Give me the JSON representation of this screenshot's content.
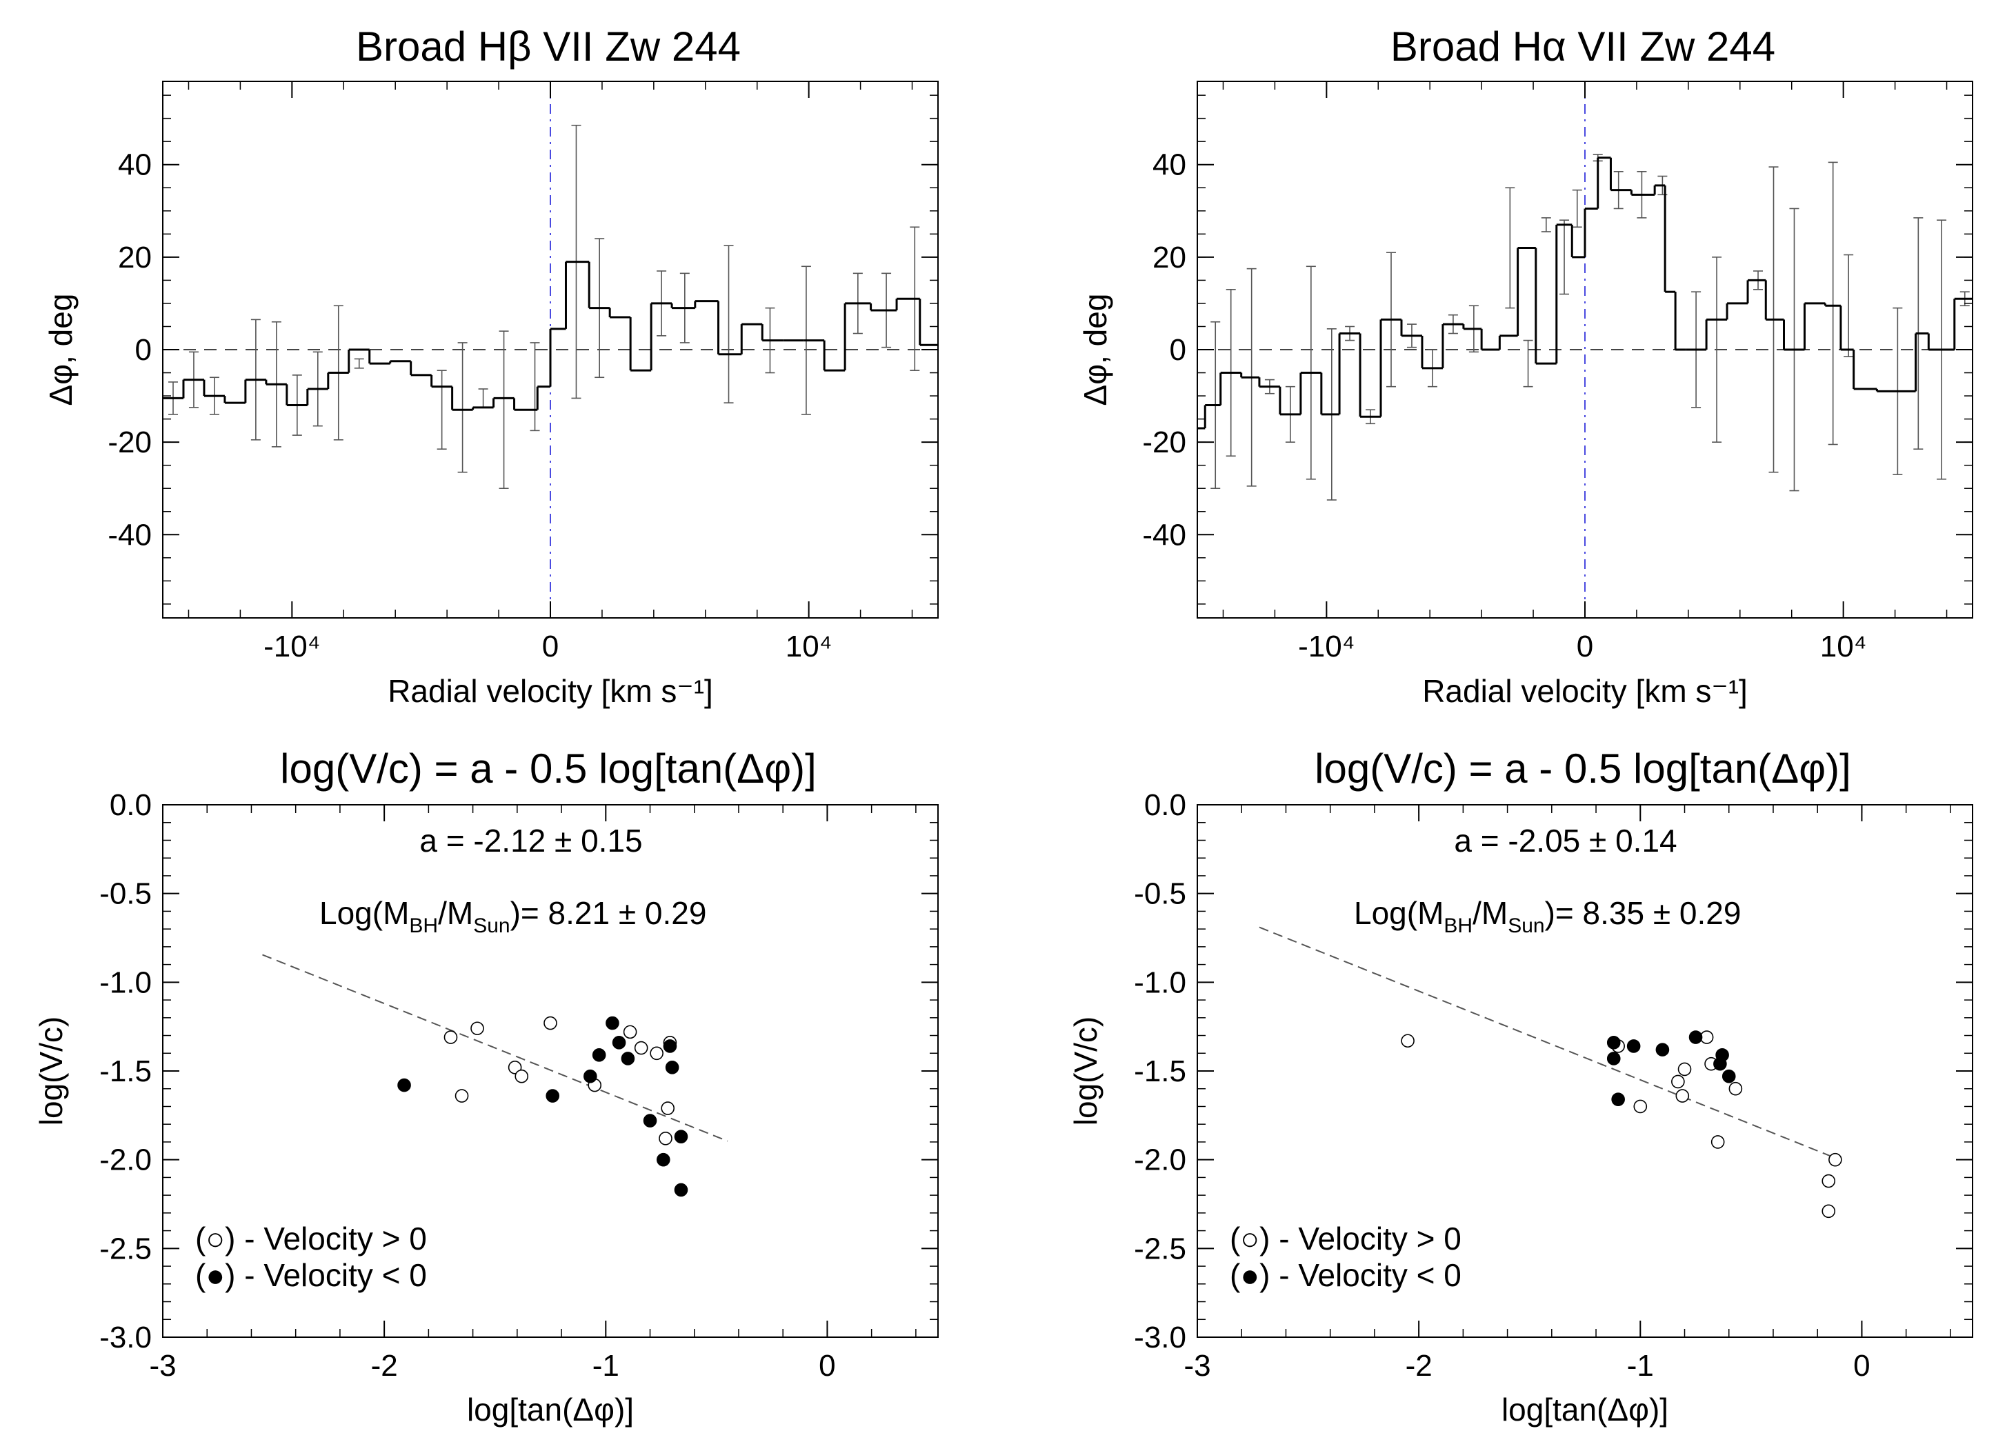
{
  "chart_data": [
    {
      "type": "line",
      "style": "step",
      "title": "Broad Hβ   VII Zw 244",
      "xlabel": "Radial velocity [km s⁻¹]",
      "ylabel": "Δφ, deg",
      "xlim": [
        -15000,
        15000
      ],
      "ylim": [
        -58,
        58
      ],
      "xticks": [
        -10000,
        0,
        10000
      ],
      "xtick_labels": [
        "-10⁴",
        "0",
        "10⁴"
      ],
      "yticks": [
        -40,
        -20,
        0,
        20,
        40
      ],
      "ytick_labels": [
        "-40",
        "-20",
        "0",
        "20",
        "40"
      ],
      "zero_line": "dashed horizontal at Δφ = 0",
      "reference_line": "dash-dot vertical at velocity = 0",
      "bin_edges": [
        -15000,
        -14200,
        -13400,
        -12600,
        -11800,
        -11000,
        -10200,
        -9400,
        -8600,
        -7800,
        -7000,
        -6200,
        -5400,
        -4600,
        -3800,
        -3000,
        -2200,
        -1400,
        -500,
        0,
        600,
        1500,
        2300,
        3100,
        3900,
        4700,
        5600,
        6500,
        7400,
        8200,
        9000,
        9800,
        10600,
        11400,
        12400,
        13400,
        14300,
        15000
      ],
      "values": [
        -10.5,
        -6.5,
        -10,
        -11.5,
        -6.5,
        -7.5,
        -12,
        -8.5,
        -5,
        0,
        -3,
        -2.5,
        -5.5,
        -8,
        -13,
        -12.5,
        -10.5,
        -13,
        -8,
        4.5,
        19,
        9,
        7,
        -4.5,
        10,
        9,
        10.5,
        -1,
        5.5,
        2,
        2,
        2,
        -4.5,
        10,
        8.5,
        11,
        1
      ],
      "error_centers": [
        -14600,
        -13800,
        -13000,
        -11400,
        -10600,
        -9800,
        -9000,
        -8200,
        -7400,
        -4200,
        -3400,
        -2600,
        -1800,
        -600,
        1000,
        1900,
        4300,
        5200,
        6900,
        8500,
        9900,
        11900,
        13000,
        14100
      ],
      "error_values": [
        -10.5,
        -6.5,
        -10,
        -6.5,
        -7.5,
        -12,
        -8.5,
        -5,
        -3,
        -13,
        -12.5,
        -10.5,
        -13,
        -8,
        19,
        9,
        10,
        9,
        5.5,
        2,
        2,
        10,
        8.5,
        11
      ],
      "error_sizes": [
        3.5,
        6,
        4,
        13,
        13.5,
        6.5,
        8,
        14.5,
        1,
        8.5,
        14,
        2,
        17,
        9.5,
        29.5,
        15,
        7,
        7.5,
        17,
        7,
        16,
        6.5,
        8,
        15.5
      ]
    },
    {
      "type": "line",
      "style": "step",
      "title": "Broad Hα   VII Zw 244",
      "xlabel": "Radial velocity [km s⁻¹]",
      "ylabel": "Δφ, deg",
      "xlim": [
        -15000,
        15000
      ],
      "ylim": [
        -58,
        58
      ],
      "xticks": [
        -10000,
        0,
        10000
      ],
      "xtick_labels": [
        "-10⁴",
        "0",
        "10⁴"
      ],
      "yticks": [
        -40,
        -20,
        0,
        20,
        40
      ],
      "ytick_labels": [
        "-40",
        "-20",
        "0",
        "20",
        "40"
      ],
      "zero_line": "dashed horizontal at Δφ = 0",
      "reference_line": "dash-dot vertical at velocity = 0",
      "bin_edges": [
        -15000,
        -14700,
        -14100,
        -13300,
        -12600,
        -11800,
        -11000,
        -10200,
        -9500,
        -8700,
        -7900,
        -7100,
        -6300,
        -5500,
        -4700,
        -4000,
        -3300,
        -2600,
        -1900,
        -1100,
        -500,
        0,
        500,
        1000,
        1800,
        2700,
        3100,
        3500,
        3900,
        4700,
        5500,
        6300,
        7000,
        7700,
        8500,
        9300,
        9900,
        10400,
        11300,
        12800,
        13300,
        14300,
        15000
      ],
      "values": [
        -17,
        -12,
        -5,
        -6,
        -8,
        -14,
        -5,
        -14,
        3.5,
        -14.5,
        6.5,
        3,
        -4,
        5.5,
        4.5,
        0,
        3,
        22,
        -3,
        27,
        20,
        30.5,
        41.5,
        34.5,
        33.5,
        35.5,
        12.5,
        0,
        0,
        6.5,
        10,
        15,
        6.5,
        0,
        10,
        9.5,
        0,
        -8.5,
        -9,
        3.5,
        0,
        11
      ],
      "error_centers": [
        -14300,
        -13700,
        -12900,
        -12200,
        -11400,
        -10600,
        -9800,
        -9100,
        -8300,
        -7500,
        -6700,
        -5900,
        -5100,
        -4300,
        -2900,
        -2200,
        -1500,
        -800,
        -300,
        500,
        1300,
        2200,
        3000,
        4300,
        5100,
        6700,
        7300,
        8100,
        9600,
        10200,
        12100,
        12900,
        13800,
        14700
      ],
      "error_values": [
        -12,
        -5,
        -6,
        -8,
        -14,
        -5,
        -14,
        3.5,
        -14.5,
        6.5,
        3,
        -4,
        5.5,
        4.5,
        22,
        -3,
        27,
        20,
        30.5,
        41.5,
        34.5,
        33.5,
        35.5,
        0,
        0,
        15,
        6.5,
        0,
        10,
        9.5,
        -9,
        3.5,
        0,
        11
      ],
      "error_sizes": [
        18,
        18,
        23.5,
        1.5,
        6,
        23,
        18.5,
        1.5,
        1.5,
        14.5,
        2.5,
        4,
        2,
        5,
        13,
        5,
        1.5,
        8,
        4,
        0.7,
        4,
        5,
        2,
        12.5,
        20,
        2,
        33,
        30.5,
        30.5,
        11,
        18,
        25,
        28,
        1.5
      ]
    },
    {
      "type": "scatter",
      "title": "log(V/c) = a - 0.5 log[tan(Δφ)]",
      "xlabel": "log[tan(Δφ)]",
      "ylabel": "log(V/c)",
      "xlim": [
        -3,
        0.5
      ],
      "ylim": [
        -3,
        0
      ],
      "xticks": [
        -3,
        -2,
        -1,
        0
      ],
      "xtick_labels": [
        "-3",
        "-2",
        "-1",
        "0"
      ],
      "yticks": [
        0,
        -0.5,
        -1,
        -1.5,
        -2,
        -2.5,
        -3
      ],
      "ytick_labels": [
        "0.0",
        "-0.5",
        "-1.0",
        "-1.5",
        "-2.0",
        "-2.5",
        "-3.0"
      ],
      "fit_line": {
        "a": -2.12,
        "x_range": [
          -2.55,
          -0.45
        ]
      },
      "annotation_a": {
        "prefix": "a = ",
        "value": "-2.12",
        "pm": "±",
        "error": "0.15"
      },
      "annotation_mass": {
        "prefix": "Log(M",
        "sub_bh": "BH",
        "slash": "/M",
        "sub_sun": "Sun",
        "suffix": ")= ",
        "value": "8.21",
        "pm": "±",
        "error": "0.29"
      },
      "legend": {
        "open_label": "- Velocity > 0",
        "filled_label": "- Velocity < 0",
        "open_marker": "○",
        "filled_marker": "●",
        "placement": "bottom-left"
      },
      "series": [
        {
          "name": "Velocity > 0",
          "marker": "open",
          "x": [
            -1.7,
            -1.65,
            -1.58,
            -1.41,
            -1.38,
            -1.25,
            -1.05,
            -0.89,
            -0.84,
            -0.77,
            -0.73,
            -0.72,
            -0.71
          ],
          "y": [
            -1.31,
            -1.64,
            -1.26,
            -1.48,
            -1.53,
            -1.23,
            -1.58,
            -1.28,
            -1.37,
            -1.4,
            -1.88,
            -1.71,
            -1.34
          ]
        },
        {
          "name": "Velocity < 0",
          "marker": "filled",
          "x": [
            -1.91,
            -1.24,
            -1.07,
            -1.03,
            -0.97,
            -0.94,
            -0.9,
            -0.8,
            -0.74,
            -0.71,
            -0.7,
            -0.66,
            -0.66
          ],
          "y": [
            -1.58,
            -1.64,
            -1.53,
            -1.41,
            -1.23,
            -1.34,
            -1.43,
            -1.78,
            -2.0,
            -1.36,
            -1.48,
            -1.87,
            -2.17
          ]
        }
      ]
    },
    {
      "type": "scatter",
      "title": "log(V/c) = a - 0.5 log[tan(Δφ)]",
      "xlabel": "log[tan(Δφ)]",
      "ylabel": "log(V/c)",
      "xlim": [
        -3,
        0.5
      ],
      "ylim": [
        -3,
        0
      ],
      "xticks": [
        -3,
        -2,
        -1,
        0
      ],
      "xtick_labels": [
        "-3",
        "-2",
        "-1",
        "0"
      ],
      "yticks": [
        0,
        -0.5,
        -1,
        -1.5,
        -2,
        -2.5,
        -3
      ],
      "ytick_labels": [
        "0.0",
        "-0.5",
        "-1.0",
        "-1.5",
        "-2.0",
        "-2.5",
        "-3.0"
      ],
      "fit_line": {
        "a": -2.05,
        "x_range": [
          -2.72,
          -0.12
        ]
      },
      "annotation_a": {
        "prefix": "a = ",
        "value": "-2.05",
        "pm": "±",
        "error": "0.14"
      },
      "annotation_mass": {
        "prefix": "Log(M",
        "sub_bh": "BH",
        "slash": "/M",
        "sub_sun": "Sun",
        "suffix": ")= ",
        "value": "8.35",
        "pm": "±",
        "error": "0.29"
      },
      "legend": {
        "open_label": "- Velocity > 0",
        "filled_label": "- Velocity < 0",
        "open_marker": "○",
        "filled_marker": "●",
        "placement": "bottom-left"
      },
      "series": [
        {
          "name": "Velocity > 0",
          "marker": "open",
          "x": [
            -2.05,
            -1.1,
            -1.0,
            -0.83,
            -0.81,
            -0.8,
            -0.7,
            -0.68,
            -0.65,
            -0.57,
            -0.15,
            -0.15,
            -0.12
          ],
          "y": [
            -1.33,
            -1.36,
            -1.7,
            -1.56,
            -1.64,
            -1.49,
            -1.31,
            -1.46,
            -1.9,
            -1.6,
            -2.12,
            -2.29,
            -2.0
          ]
        },
        {
          "name": "Velocity < 0",
          "marker": "filled",
          "x": [
            -1.12,
            -1.12,
            -1.1,
            -1.03,
            -0.9,
            -0.75,
            -0.64,
            -0.63,
            -0.6
          ],
          "y": [
            -1.34,
            -1.43,
            -1.66,
            -1.36,
            -1.38,
            -1.31,
            -1.46,
            -1.41,
            -1.53
          ]
        }
      ]
    }
  ]
}
